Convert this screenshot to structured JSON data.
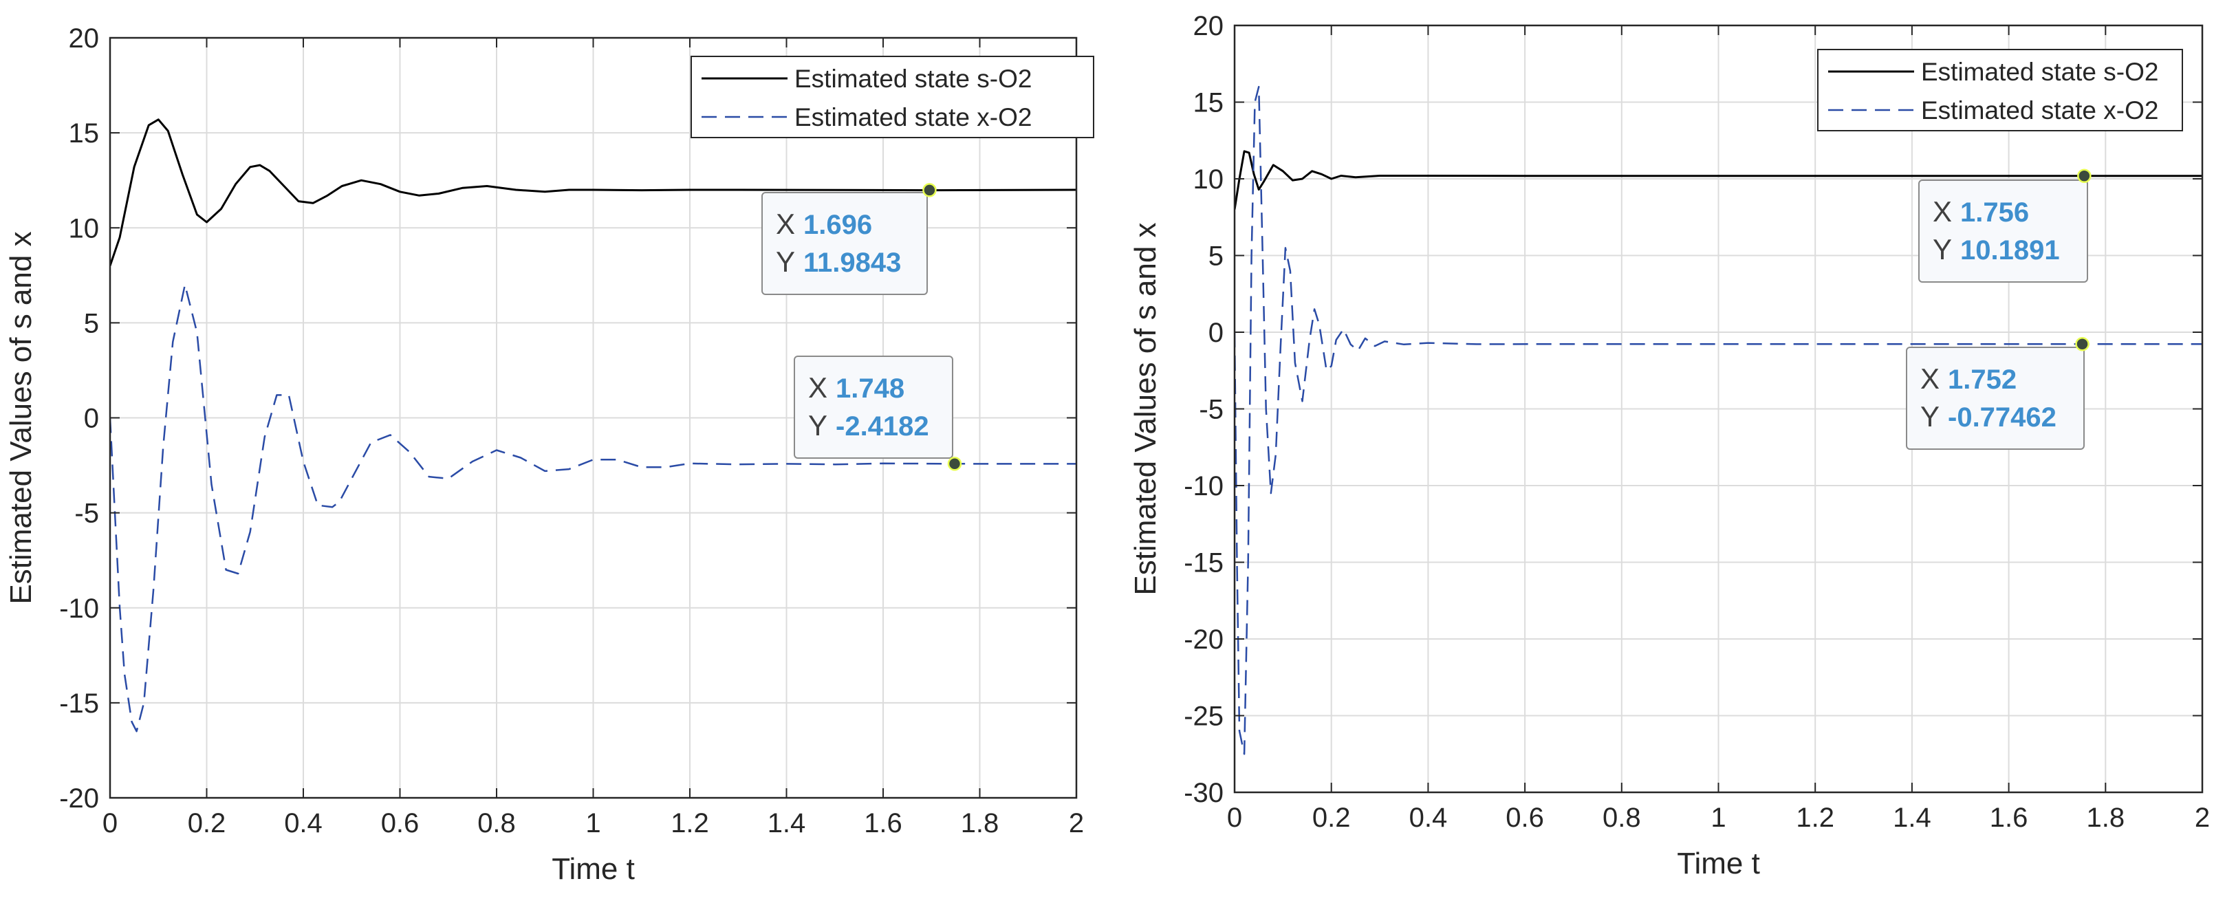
{
  "chart_data": [
    {
      "type": "line",
      "xlabel": "Time t",
      "ylabel": "Estimated Values of s and x",
      "xlim": [
        0,
        2
      ],
      "ylim": [
        -20,
        20
      ],
      "xticks": [
        0,
        0.2,
        0.4,
        0.6,
        0.8,
        1,
        1.2,
        1.4,
        1.6,
        1.8,
        2
      ],
      "xtick_labels": [
        "0",
        "0.2",
        "0.4",
        "0.6",
        "0.8",
        "1",
        "1.2",
        "1.4",
        "1.6",
        "1.8",
        "2"
      ],
      "yticks": [
        -20,
        -15,
        -10,
        -5,
        0,
        5,
        10,
        15,
        20
      ],
      "ytick_labels": [
        "-20",
        "-15",
        "-10",
        "-5",
        "0",
        "5",
        "10",
        "15",
        "20"
      ],
      "grid": true,
      "legend_position": "top-right",
      "series": [
        {
          "name": "Estimated state s-O2",
          "style": "solid",
          "color": "#000000",
          "x": [
            0,
            0.02,
            0.05,
            0.08,
            0.1,
            0.12,
            0.15,
            0.18,
            0.2,
            0.23,
            0.26,
            0.29,
            0.31,
            0.33,
            0.36,
            0.39,
            0.42,
            0.45,
            0.48,
            0.52,
            0.56,
            0.6,
            0.64,
            0.68,
            0.73,
            0.78,
            0.84,
            0.9,
            0.95,
            1.0,
            1.1,
            1.2,
            1.3,
            1.5,
            1.7,
            2.0
          ],
          "y": [
            8,
            9.5,
            13.2,
            15.4,
            15.7,
            15.1,
            12.8,
            10.7,
            10.3,
            11.0,
            12.3,
            13.2,
            13.3,
            13.0,
            12.2,
            11.4,
            11.3,
            11.7,
            12.2,
            12.5,
            12.3,
            11.9,
            11.7,
            11.8,
            12.1,
            12.2,
            12.0,
            11.9,
            12.0,
            12.0,
            11.98,
            12.0,
            12.0,
            11.99,
            11.98,
            12.0
          ]
        },
        {
          "name": "Estimated state x-O2",
          "style": "dashed",
          "color": "#2a4ba6",
          "x": [
            0,
            0.01,
            0.02,
            0.03,
            0.045,
            0.055,
            0.07,
            0.09,
            0.11,
            0.13,
            0.155,
            0.18,
            0.21,
            0.24,
            0.265,
            0.29,
            0.32,
            0.345,
            0.37,
            0.4,
            0.43,
            0.46,
            0.475,
            0.5,
            0.54,
            0.58,
            0.62,
            0.66,
            0.7,
            0.75,
            0.8,
            0.85,
            0.9,
            0.95,
            1.0,
            1.05,
            1.1,
            1.15,
            1.2,
            1.3,
            1.4,
            1.5,
            1.6,
            1.748,
            2.0
          ],
          "y": [
            0,
            -5,
            -10,
            -13.5,
            -16,
            -16.5,
            -15,
            -9,
            -1.5,
            4,
            7,
            4.5,
            -3.5,
            -8,
            -8.2,
            -6,
            -1,
            1.2,
            1.2,
            -2.3,
            -4.6,
            -4.7,
            -4.4,
            -3.2,
            -1.3,
            -0.9,
            -1.8,
            -3.1,
            -3.2,
            -2.3,
            -1.7,
            -2.1,
            -2.8,
            -2.7,
            -2.2,
            -2.2,
            -2.6,
            -2.6,
            -2.4,
            -2.45,
            -2.42,
            -2.45,
            -2.4,
            -2.4182,
            -2.42
          ]
        }
      ],
      "datatips": [
        {
          "series": 0,
          "x": 1.696,
          "y": 11.9843,
          "x_label": "1.696",
          "y_label": "11.9843"
        },
        {
          "series": 1,
          "x": 1.748,
          "y": -2.4182,
          "x_label": "1.748",
          "y_label": "-2.4182"
        }
      ]
    },
    {
      "type": "line",
      "xlabel": "Time t",
      "ylabel": "Estimated Values of s and x",
      "xlim": [
        0,
        2
      ],
      "ylim": [
        -30,
        20
      ],
      "xticks": [
        0,
        0.2,
        0.4,
        0.6,
        0.8,
        1,
        1.2,
        1.4,
        1.6,
        1.8,
        2
      ],
      "xtick_labels": [
        "0",
        "0.2",
        "0.4",
        "0.6",
        "0.8",
        "1",
        "1.2",
        "1.4",
        "1.6",
        "1.8",
        "2"
      ],
      "yticks": [
        -30,
        -25,
        -20,
        -15,
        -10,
        -5,
        0,
        5,
        10,
        15,
        20
      ],
      "ytick_labels": [
        "-30",
        "-25",
        "-20",
        "-15",
        "-10",
        "-5",
        "0",
        "5",
        "10",
        "15",
        "20"
      ],
      "grid": true,
      "legend_position": "top-right",
      "series": [
        {
          "name": "Estimated state s-O2",
          "style": "solid",
          "color": "#000000",
          "x": [
            0,
            0.01,
            0.02,
            0.03,
            0.04,
            0.05,
            0.06,
            0.08,
            0.1,
            0.12,
            0.14,
            0.16,
            0.18,
            0.2,
            0.22,
            0.25,
            0.3,
            0.4,
            0.6,
            1.0,
            1.5,
            2.0
          ],
          "y": [
            8,
            10,
            11.8,
            11.7,
            10.3,
            9.3,
            9.8,
            10.9,
            10.5,
            9.9,
            10.0,
            10.5,
            10.3,
            10.0,
            10.2,
            10.1,
            10.2,
            10.2,
            10.19,
            10.19,
            10.19,
            10.19
          ]
        },
        {
          "name": "Estimated state x-O2",
          "style": "dashed",
          "color": "#2a4ba6",
          "x": [
            0,
            0.005,
            0.01,
            0.02,
            0.028,
            0.035,
            0.042,
            0.05,
            0.058,
            0.065,
            0.075,
            0.085,
            0.095,
            0.105,
            0.115,
            0.125,
            0.14,
            0.155,
            0.165,
            0.175,
            0.19,
            0.2,
            0.21,
            0.225,
            0.24,
            0.255,
            0.27,
            0.29,
            0.31,
            0.35,
            0.4,
            0.5,
            0.7,
            1.0,
            1.5,
            1.752,
            2.0
          ],
          "y": [
            0,
            -15,
            -26,
            -27.5,
            -15,
            5,
            15,
            16,
            5,
            -5,
            -10.5,
            -8,
            -1,
            5.5,
            4,
            -2,
            -4.5,
            -0.5,
            1.5,
            0.5,
            -2.5,
            -2.2,
            -0.5,
            0.2,
            -0.8,
            -1.2,
            -0.4,
            -0.9,
            -0.6,
            -0.8,
            -0.7,
            -0.78,
            -0.77,
            -0.775,
            -0.775,
            -0.77462,
            -0.775
          ]
        }
      ],
      "datatips": [
        {
          "series": 0,
          "x": 1.756,
          "y": 10.1891,
          "x_label": "1.756",
          "y_label": "10.1891"
        },
        {
          "series": 1,
          "x": 1.752,
          "y": -0.77462,
          "x_label": "1.752",
          "y_label": "-0.77462"
        }
      ]
    }
  ]
}
